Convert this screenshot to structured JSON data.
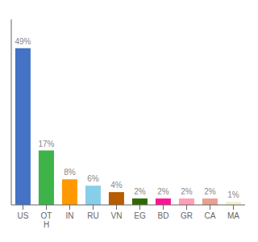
{
  "chart_data": {
    "type": "bar",
    "categories": [
      "US",
      "OT\nH",
      "IN",
      "RU",
      "VN",
      "EG",
      "BD",
      "GR",
      "CA",
      "MA"
    ],
    "values": [
      49,
      17,
      8,
      6,
      4,
      2,
      2,
      2,
      2,
      1
    ],
    "value_labels": [
      "49%",
      "17%",
      "8%",
      "6%",
      "4%",
      "2%",
      "2%",
      "2%",
      "2%",
      "1%"
    ],
    "data_labels": true,
    "colors": [
      "#4472c4",
      "#3db34a",
      "#ff9900",
      "#87ceeb",
      "#b85c00",
      "#2d6a00",
      "#ff1493",
      "#ff9eb5",
      "#e8a090",
      "#f5f0d0"
    ],
    "ylim": [
      0,
      58
    ],
    "grid": false,
    "tick_labels": "x"
  }
}
